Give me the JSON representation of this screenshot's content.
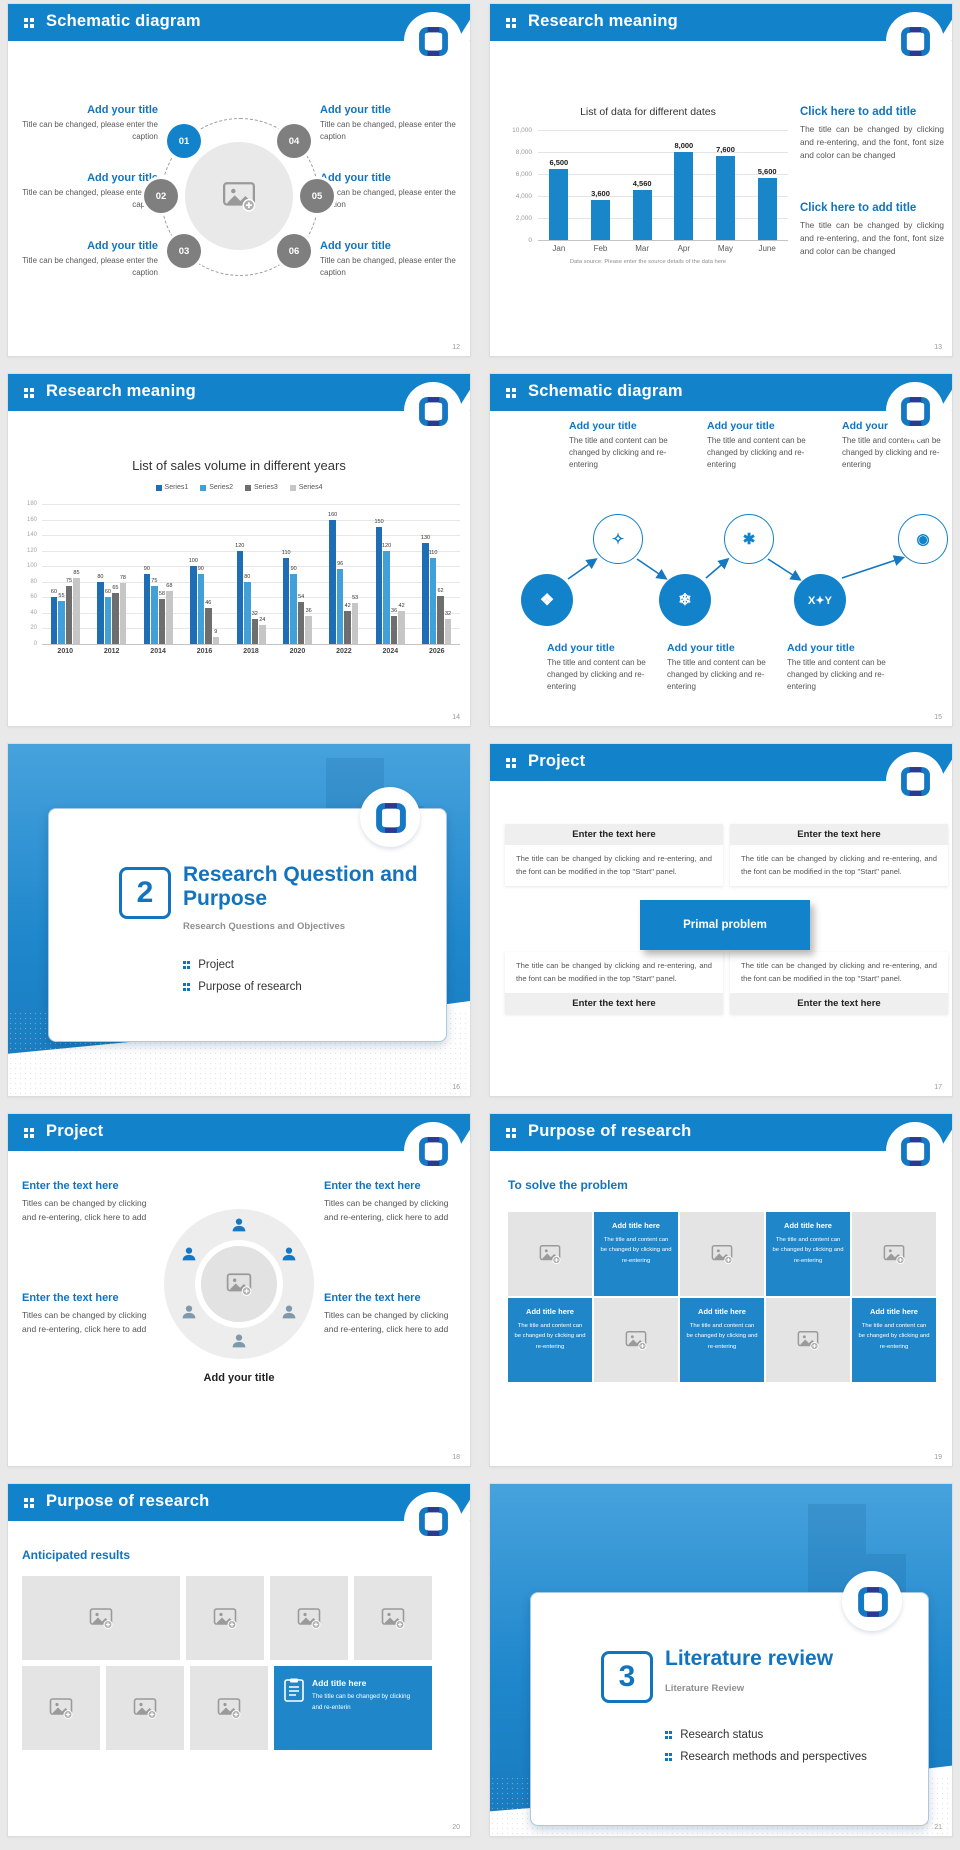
{
  "colors": {
    "brand_blue": "#1282cb",
    "accent_blue": "#1274bf",
    "dark_navy": "#2b3a8f",
    "bar_blue": "#1a86ca"
  },
  "strings": {
    "add_your_title": "Add your title",
    "node_caption": "Title can be changed, please enter the caption",
    "flow_caption": "The title and content can be changed by clicking and re-entering",
    "click_title": "Click here to add title",
    "click_body": "The title can be changed by clicking and re-entering, and the font, font size and color can be changed",
    "enter_text": "Enter the text here",
    "panel_body": "The title can be changed by clicking and re-entering, and the font can be modified in the top \"Start\" panel.",
    "primal_problem": "Primal problem",
    "corner_body": "Titles can be changed by clicking and re-entering, click here to add",
    "solve_heading": "To solve the problem",
    "add_title_here": "Add title here",
    "cell_body": "The title and content can be changed by clicking and re-entering",
    "anticipated_heading": "Anticipated results",
    "doc_cell_body": "The title can be changed by clicking and re-enterin",
    "source_note": "Data source: Please enter the source details of the data here"
  },
  "flow_icons": [
    {
      "name": "lattice-icon",
      "glyph": "❖"
    },
    {
      "name": "sparkle-icon",
      "glyph": "✧"
    },
    {
      "name": "snowflake-icon",
      "glyph": "❄"
    },
    {
      "name": "molecule-icon",
      "glyph": "✱"
    },
    {
      "name": "xy-icon",
      "glyph": "X✦Y"
    },
    {
      "name": "globe-icon",
      "glyph": "◉"
    }
  ],
  "slides": {
    "s12": {
      "header": "Schematic diagram",
      "page": "12",
      "nodes": [
        "01",
        "02",
        "03",
        "04",
        "05",
        "06"
      ]
    },
    "s13": {
      "header": "Research meaning",
      "page": "13"
    },
    "s14": {
      "header": "Research meaning",
      "page": "14"
    },
    "s15": {
      "header": "Schematic diagram",
      "page": "15"
    },
    "s16": {
      "page": "16",
      "number": "2",
      "title": "Research Question and Purpose",
      "subtitle": "Research Questions and Objectives",
      "bullets": [
        "Project",
        "Purpose of research"
      ]
    },
    "s17": {
      "header": "Project",
      "page": "17"
    },
    "s18": {
      "header": "Project",
      "page": "18",
      "center_label": "Add your title"
    },
    "s19": {
      "header": "Purpose of research",
      "page": "19"
    },
    "s20": {
      "header": "Purpose of research",
      "page": "20"
    },
    "s21": {
      "page": "21",
      "number": "3",
      "title": "Literature review",
      "subtitle": "Literature Review",
      "bullets": [
        "Research status",
        "Research methods and perspectives"
      ]
    }
  },
  "chart_data": [
    {
      "type": "bar",
      "title": "List of data for different dates",
      "categories": [
        "Jan",
        "Feb",
        "Mar",
        "Apr",
        "May",
        "June"
      ],
      "values": [
        6500,
        3600,
        4560,
        8000,
        7600,
        5600
      ],
      "labels": [
        "6,500",
        "3,600",
        "4,560",
        "8,000",
        "7,600",
        "5,600"
      ],
      "ylim": [
        0,
        10000
      ],
      "yticks": [
        "0",
        "2,000",
        "4,000",
        "6,000",
        "8,000",
        "10,000"
      ],
      "bar_color": "#1a86ca",
      "grid": true,
      "xlabel": "",
      "ylabel": ""
    },
    {
      "type": "bar",
      "title": "List of sales volume in different years",
      "categories": [
        "2010",
        "2012",
        "2014",
        "2016",
        "2018",
        "2020",
        "2022",
        "2024",
        "2026"
      ],
      "series": [
        {
          "name": "Series1",
          "color": "#1f6db4",
          "values": [
            60,
            80,
            90,
            100,
            120,
            110,
            160,
            150,
            130
          ]
        },
        {
          "name": "Series2",
          "color": "#42a0d9",
          "values": [
            55,
            60,
            75,
            90,
            80,
            90,
            96,
            120,
            110
          ]
        },
        {
          "name": "Series3",
          "color": "#6e6e6e",
          "values": [
            75,
            65,
            58,
            46,
            32,
            54,
            42,
            36,
            62
          ]
        },
        {
          "name": "Series4",
          "color": "#c6c6c6",
          "values": [
            85,
            78,
            68,
            9,
            24,
            36,
            53,
            42,
            32
          ]
        }
      ],
      "ylim": [
        0,
        180
      ],
      "ytick_step": 20,
      "grid": true,
      "legend_position": "top"
    }
  ]
}
